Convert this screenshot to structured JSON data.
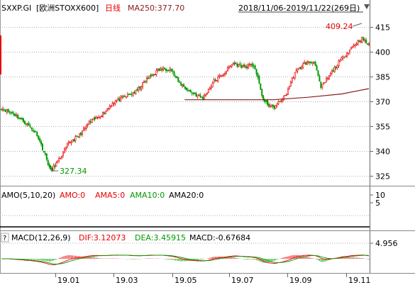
{
  "header": {
    "symbol": "SXXP.GI",
    "name": "[欧洲STOXX600]",
    "period": "日线",
    "ma_label": "MA250:377.70",
    "date_range": "2018/11/06-2019/11/22(269日)"
  },
  "annotations": {
    "high": "409.24",
    "low": "327.34"
  },
  "amo_panel": {
    "title": "AMO(5,10,20)",
    "amo": "AMO:0",
    "ama5": "AMA5:0",
    "ama10": "AMA10:0",
    "ama20": "AMA20:0",
    "ticks": [
      "10",
      "5"
    ]
  },
  "macd_panel": {
    "help": "?",
    "title": "MACD(12,26,9)",
    "dif": "DIF:3.12073",
    "dea": "DEA:3.45915",
    "macd": "MACD:-0.67684",
    "tick": "4.956"
  },
  "x_labels": [
    "19.01",
    "19.03",
    "19.05",
    "19.07",
    "19.09",
    "19.11"
  ],
  "colors": {
    "up": "#e60000",
    "down": "#009900",
    "ma250": "#8b1a1a",
    "amo": "#e60000",
    "ama5": "#e60000",
    "ama10": "#009900",
    "ama20": "#000000",
    "dif": "#e60000",
    "dea": "#009900"
  },
  "chart_data": {
    "type": "candlestick",
    "title": "SXXP.GI [欧洲STOXX600] 日线",
    "date_range": "2018/11/06-2019/11/22",
    "yticks": [
      325,
      340,
      355,
      370,
      385,
      400,
      415
    ],
    "ylim": [
      318,
      420
    ],
    "xticks": [
      "19.01",
      "19.03",
      "19.05",
      "19.07",
      "19.09",
      "19.11"
    ],
    "close_path": [
      [
        "2018-11-06",
        366
      ],
      [
        "2018-11-20",
        362
      ],
      [
        "2018-12-03",
        356
      ],
      [
        "2018-12-13",
        350
      ],
      [
        "2018-12-21",
        338
      ],
      [
        "2018-12-27",
        328
      ],
      [
        "2019-01-04",
        334
      ],
      [
        "2019-01-15",
        345
      ],
      [
        "2019-01-25",
        349
      ],
      [
        "2019-02-05",
        357
      ],
      [
        "2019-02-20",
        363
      ],
      [
        "2019-03-01",
        369
      ],
      [
        "2019-03-15",
        373
      ],
      [
        "2019-03-26",
        376
      ],
      [
        "2019-04-05",
        383
      ],
      [
        "2019-04-18",
        389
      ],
      [
        "2019-04-30",
        390
      ],
      [
        "2019-05-08",
        382
      ],
      [
        "2019-05-20",
        376
      ],
      [
        "2019-06-03",
        372
      ],
      [
        "2019-06-14",
        382
      ],
      [
        "2019-06-25",
        387
      ],
      [
        "2019-07-04",
        393
      ],
      [
        "2019-07-15",
        391
      ],
      [
        "2019-07-26",
        392
      ],
      [
        "2019-08-05",
        370
      ],
      [
        "2019-08-15",
        366
      ],
      [
        "2019-08-27",
        373
      ],
      [
        "2019-09-06",
        387
      ],
      [
        "2019-09-16",
        393
      ],
      [
        "2019-09-27",
        394
      ],
      [
        "2019-10-03",
        378
      ],
      [
        "2019-10-15",
        388
      ],
      [
        "2019-10-25",
        396
      ],
      [
        "2019-11-08",
        405
      ],
      [
        "2019-11-15",
        408
      ],
      [
        "2019-11-22",
        404
      ]
    ],
    "high": {
      "value": 409.24,
      "date": "2019-11-15"
    },
    "low": {
      "value": 327.34,
      "date": "2018-12-27"
    },
    "ma250": {
      "name": "MA250",
      "latest": 377.7,
      "points": [
        [
          "2019-05-15",
          371
        ],
        [
          "2019-07-01",
          371
        ],
        [
          "2019-08-15",
          371
        ],
        [
          "2019-09-20",
          372.5
        ],
        [
          "2019-10-25",
          374.5
        ],
        [
          "2019-11-22",
          377.7
        ]
      ]
    },
    "amo": {
      "amo": 0,
      "ama5": 0,
      "ama10": 0,
      "ama20": 0
    },
    "macd": {
      "dif": 3.12073,
      "dea": 3.45915,
      "macd": -0.67684,
      "tick": 4.956
    }
  }
}
